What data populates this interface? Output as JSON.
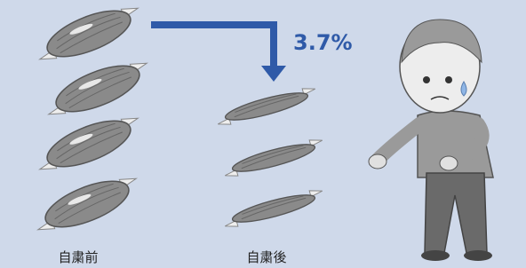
{
  "labels": {
    "before": "自粛前",
    "after": "自粛後"
  },
  "change": "3.7%"
}
